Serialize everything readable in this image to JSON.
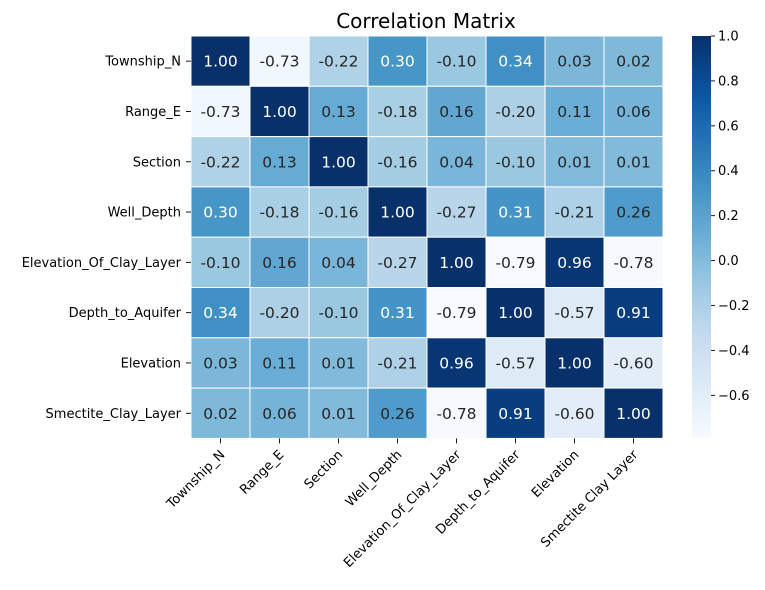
{
  "chart_data": {
    "type": "heatmap",
    "title": "Correlation Matrix",
    "xlabel": "",
    "ylabel": "",
    "row_labels": [
      "Township_N",
      "Range_E",
      "Section",
      "Well_Depth",
      "Elevation_Of_Clay_Layer",
      "Depth_to_Aquifer",
      "Elevation",
      "Smectite_Clay_Layer"
    ],
    "col_labels": [
      "Township_N",
      "Range_E",
      "Section",
      "Well_Depth",
      "Elevation_Of_Clay_Layer",
      "Depth_to_Aquifer",
      "Elevation",
      "Smectite Clay Layer"
    ],
    "values": [
      [
        1.0,
        -0.73,
        -0.22,
        0.3,
        -0.1,
        0.34,
        0.03,
        0.02
      ],
      [
        -0.73,
        1.0,
        0.13,
        -0.18,
        0.16,
        -0.2,
        0.11,
        0.06
      ],
      [
        -0.22,
        0.13,
        1.0,
        -0.16,
        0.04,
        -0.1,
        0.01,
        0.01
      ],
      [
        0.3,
        -0.18,
        -0.16,
        1.0,
        -0.27,
        0.31,
        -0.21,
        0.26
      ],
      [
        -0.1,
        0.16,
        0.04,
        -0.27,
        1.0,
        -0.79,
        0.96,
        -0.78
      ],
      [
        0.34,
        -0.2,
        -0.1,
        0.31,
        -0.79,
        1.0,
        -0.57,
        0.91
      ],
      [
        0.03,
        0.11,
        0.01,
        -0.21,
        0.96,
        -0.57,
        1.0,
        -0.6
      ],
      [
        0.02,
        0.06,
        0.01,
        0.26,
        -0.78,
        0.91,
        -0.6,
        1.0
      ]
    ],
    "value_format": "0.00",
    "colormap": "Blues",
    "vmin": -0.79,
    "vmax": 1.0,
    "colorbar_ticks": [
      "1.0",
      "0.8",
      "0.6",
      "0.4",
      "0.2",
      "0.0",
      "−0.2",
      "−0.4",
      "−0.6"
    ],
    "colorbar_tick_values": [
      1.0,
      0.8,
      0.6,
      0.4,
      0.2,
      0.0,
      -0.2,
      -0.4,
      -0.6
    ],
    "cell_gridlines": "white",
    "legend": "colorbar-right"
  }
}
